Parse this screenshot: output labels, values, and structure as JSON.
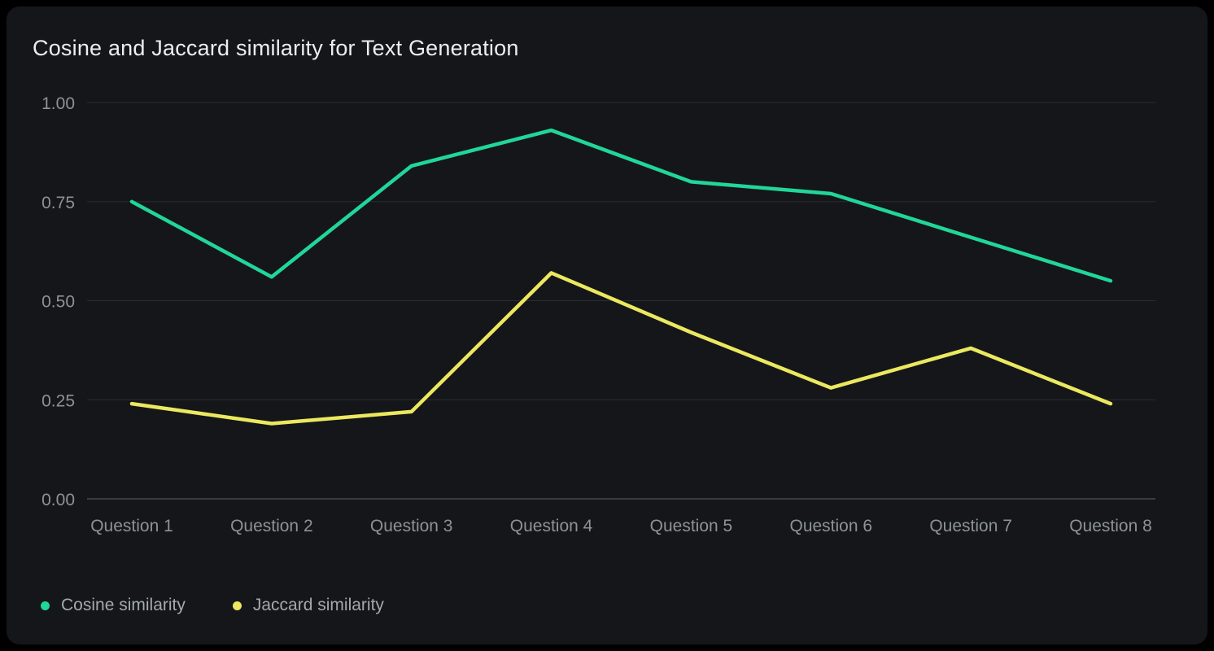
{
  "chart_data": {
    "type": "line",
    "title": "Cosine and Jaccard similarity for Text Generation",
    "categories": [
      "Question 1",
      "Question 2",
      "Question 3",
      "Question 4",
      "Question 5",
      "Question 6",
      "Question 7",
      "Question 8"
    ],
    "series": [
      {
        "name": "Cosine similarity",
        "color": "#21d698",
        "values": [
          0.75,
          0.56,
          0.84,
          0.93,
          0.8,
          0.77,
          0.66,
          0.55
        ]
      },
      {
        "name": "Jaccard similarity",
        "color": "#ece85f",
        "values": [
          0.24,
          0.19,
          0.22,
          0.57,
          0.42,
          0.28,
          0.38,
          0.24
        ]
      }
    ],
    "ylim": [
      0,
      1
    ],
    "y_tick_labels": [
      "0.00",
      "0.25",
      "0.50",
      "0.75",
      "1.00"
    ],
    "y_tick_values": [
      0,
      0.25,
      0.5,
      0.75,
      1
    ],
    "grid": true,
    "legend_position": "bottom-left"
  },
  "colors": {
    "page_background": "#000000",
    "panel_background": "#141619",
    "gridline": "#2a2d30",
    "axis_line": "#45494e",
    "title_text": "#ebedef",
    "tick_text": "#8d9298",
    "legend_text": "#a4a9af"
  }
}
